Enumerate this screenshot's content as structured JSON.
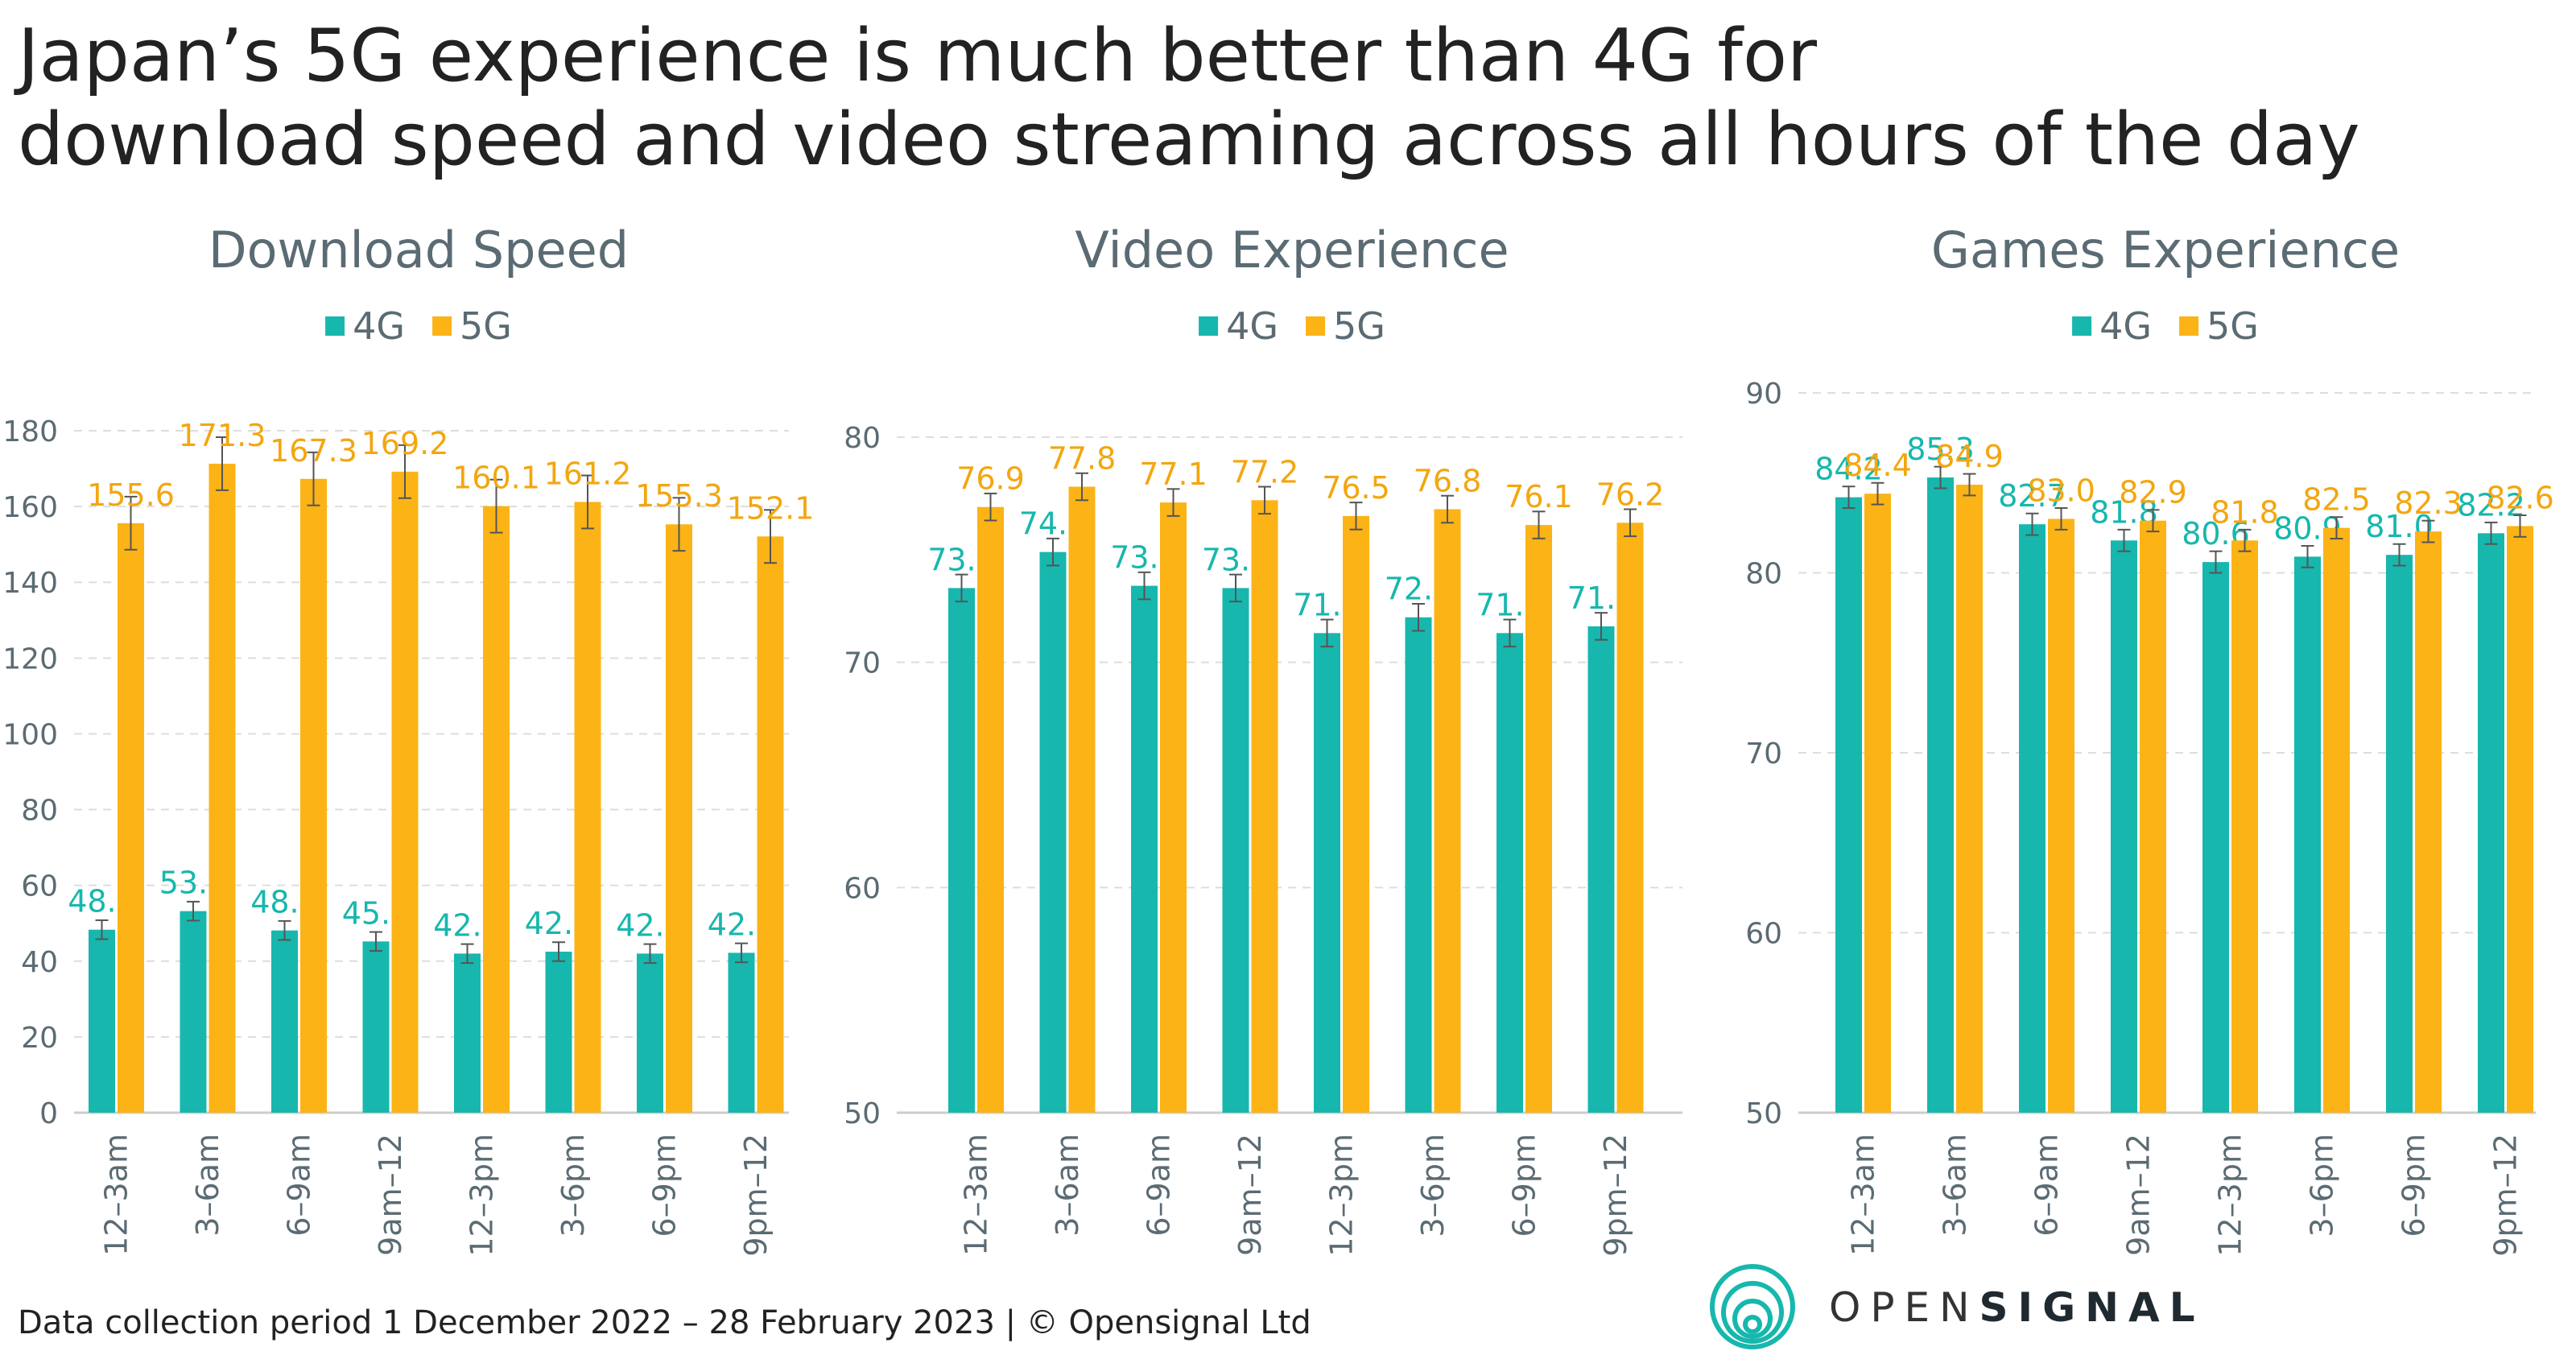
{
  "title": {
    "line1": "Japan’s 5G experience is much better than 4G for",
    "line2": "download speed and video streaming across all hours of the day"
  },
  "colors": {
    "g4": "#17b7ad",
    "g5": "#fbb316",
    "label4": "#17b7ad",
    "label5": "#f3a60f",
    "axis": "#5b6b73",
    "grid": "#dddddd"
  },
  "legend": {
    "g4": "4G",
    "g5": "5G"
  },
  "footnote": "Data collection period 1 December 2022 – 28 February 2023  |  © Opensignal Ltd",
  "brand": {
    "part1": "OPEN",
    "part2": "SIGNAL"
  },
  "chart_data": [
    {
      "type": "bar",
      "title": "Download Speed",
      "categories": [
        "12–3am",
        "3–6am",
        "6–9am",
        "9am–12",
        "12–3pm",
        "3–6pm",
        "6–9pm",
        "9pm–12"
      ],
      "series": [
        {
          "name": "4G",
          "values": [
            48.3,
            53.2,
            48.1,
            45.2,
            42.0,
            42.5,
            42.0,
            42.2
          ]
        },
        {
          "name": "5G",
          "values": [
            155.6,
            171.3,
            167.3,
            169.2,
            160.1,
            161.2,
            155.3,
            152.1
          ]
        }
      ],
      "ylim": [
        0,
        180
      ],
      "yticks": [
        0,
        20,
        40,
        60,
        80,
        100,
        120,
        140,
        160,
        180
      ],
      "error_bars": true
    },
    {
      "type": "bar",
      "title": "Video Experience",
      "categories": [
        "12–3am",
        "3–6am",
        "6–9am",
        "9am–12",
        "12–3pm",
        "3–6pm",
        "6–9pm",
        "9pm–12"
      ],
      "series": [
        {
          "name": "4G",
          "values": [
            73.3,
            74.9,
            73.4,
            73.3,
            71.3,
            72.0,
            71.3,
            71.6
          ]
        },
        {
          "name": "5G",
          "values": [
            76.9,
            77.8,
            77.1,
            77.2,
            76.5,
            76.8,
            76.1,
            76.2
          ]
        }
      ],
      "ylim": [
        50,
        80
      ],
      "yticks": [
        50,
        60,
        70,
        80
      ],
      "error_bars": true
    },
    {
      "type": "bar",
      "title": "Games Experience",
      "categories": [
        "12–3am",
        "3–6am",
        "6–9am",
        "9am–12",
        "12–3pm",
        "3–6pm",
        "6–9pm",
        "9pm–12"
      ],
      "series": [
        {
          "name": "4G",
          "values": [
            84.2,
            85.3,
            82.7,
            81.8,
            80.6,
            80.9,
            81.0,
            82.2
          ]
        },
        {
          "name": "5G",
          "values": [
            84.4,
            84.9,
            83.0,
            82.9,
            81.8,
            82.5,
            82.3,
            82.6
          ]
        }
      ],
      "ylim": [
        50,
        90
      ],
      "yticks": [
        50,
        60,
        70,
        80,
        90
      ],
      "error_bars": true
    }
  ]
}
